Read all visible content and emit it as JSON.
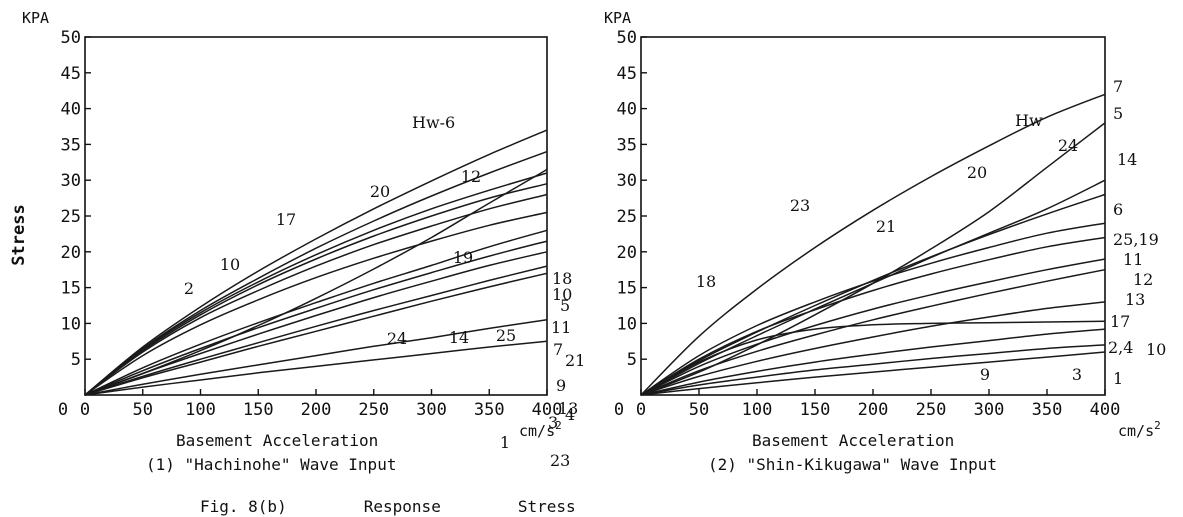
{
  "figure_caption": "Fig. 8(b)        Response        Stress",
  "chart_data": [
    {
      "type": "line",
      "panel_caption": "(1) \"Hachinohe\" Wave Input",
      "xlabel": "Basement  Acceleration",
      "xunit": "cm/s",
      "xunit_sup": "2",
      "ylabel": "Stress",
      "yunit": "KPA",
      "xlim": [
        0,
        400
      ],
      "ylim": [
        0,
        50
      ],
      "xticks": [
        "0",
        "50",
        "100",
        "150",
        "200",
        "250",
        "300",
        "350",
        "400"
      ],
      "yticks": [
        "5",
        "10",
        "15",
        "20",
        "25",
        "30",
        "35",
        "40",
        "45",
        "50"
      ],
      "inner_label": "Hw-6",
      "end_labels": [
        "18",
        "10",
        "5",
        "11",
        "7",
        "21",
        "9",
        "13",
        "4",
        "3",
        "23"
      ],
      "curve_labels": [
        "12",
        "20",
        "17",
        "10",
        "2",
        "19",
        "24",
        "14",
        "25",
        "1"
      ],
      "series": [
        {
          "values": [
            0,
            6.7,
            12.3,
            17.3,
            21.8,
            26.0,
            29.9,
            33.6,
            37.0
          ]
        },
        {
          "values": [
            0,
            6.5,
            11.8,
            16.3,
            20.5,
            24.3,
            27.8,
            31.0,
            34.0
          ]
        },
        {
          "values": [
            0,
            6.4,
            11.5,
            15.8,
            19.6,
            23.0,
            26.0,
            28.6,
            31.0
          ]
        },
        {
          "values": [
            0,
            6.2,
            11.2,
            15.4,
            19.0,
            22.2,
            25.0,
            27.5,
            29.5
          ]
        },
        {
          "values": [
            0,
            6.0,
            10.8,
            14.6,
            18.0,
            21.0,
            23.6,
            26.0,
            28.0
          ]
        },
        {
          "values": [
            0,
            3.0,
            6.2,
            9.7,
            13.5,
            17.6,
            22.0,
            26.8,
            31.5
          ]
        },
        {
          "values": [
            0,
            5.5,
            9.8,
            13.3,
            16.4,
            19.1,
            21.5,
            23.7,
            25.5
          ]
        },
        {
          "values": [
            0,
            3.8,
            7.1,
            10.1,
            12.9,
            15.6,
            18.1,
            20.7,
            23.0
          ]
        },
        {
          "values": [
            0,
            3.4,
            6.5,
            9.4,
            12.1,
            14.7,
            17.1,
            19.4,
            21.5
          ]
        },
        {
          "values": [
            0,
            3.0,
            5.8,
            8.5,
            11.1,
            13.6,
            15.9,
            18.1,
            20.0
          ]
        },
        {
          "values": [
            0,
            2.6,
            5.0,
            7.3,
            9.6,
            11.8,
            13.9,
            16.0,
            18.0
          ]
        },
        {
          "values": [
            0,
            2.4,
            4.6,
            6.8,
            8.9,
            11.0,
            13.1,
            15.1,
            17.0
          ]
        },
        {
          "values": [
            0,
            1.5,
            2.9,
            4.2,
            5.5,
            6.8,
            8.0,
            9.3,
            10.5
          ]
        },
        {
          "values": [
            0,
            1.1,
            2.1,
            3.1,
            4.0,
            4.9,
            5.8,
            6.7,
            7.5
          ]
        }
      ]
    },
    {
      "type": "line",
      "panel_caption": "(2) \"Shin-Kikugawa\" Wave Input",
      "xlabel": "Basement  Acceleration",
      "xunit": "cm/s",
      "xunit_sup": "2",
      "ylabel": "",
      "yunit": "KPA",
      "xlim": [
        0,
        400
      ],
      "ylim": [
        0,
        50
      ],
      "xticks": [
        "0",
        "50",
        "100",
        "150",
        "200",
        "250",
        "300",
        "350",
        "400"
      ],
      "yticks": [
        "5",
        "10",
        "15",
        "20",
        "25",
        "30",
        "35",
        "40",
        "45",
        "50"
      ],
      "inner_label": "Hw",
      "end_labels": [
        "7",
        "5",
        "14",
        "6",
        "25,19",
        "11",
        "12",
        "13",
        "17",
        "2,4",
        "10",
        "1"
      ],
      "curve_labels": [
        "18",
        "23",
        "21",
        "20",
        "24",
        "9",
        "3"
      ],
      "series": [
        {
          "values": [
            0,
            8.2,
            14.8,
            20.6,
            25.8,
            30.5,
            34.8,
            38.8,
            42.0
          ]
        },
        {
          "values": [
            0,
            3.2,
            7.0,
            11.2,
            15.6,
            20.4,
            25.6,
            31.8,
            38.0
          ]
        },
        {
          "values": [
            0,
            4.4,
            8.3,
            12.0,
            15.6,
            19.2,
            22.6,
            26.0,
            30.0
          ]
        },
        {
          "values": [
            0,
            4.8,
            8.8,
            12.5,
            16.0,
            19.3,
            22.4,
            25.3,
            28.0
          ]
        },
        {
          "values": [
            0,
            5.5,
            9.7,
            13.0,
            15.9,
            18.4,
            20.6,
            22.6,
            24.0
          ]
        },
        {
          "values": [
            0,
            5.0,
            8.9,
            11.9,
            14.6,
            16.9,
            18.9,
            20.7,
            22.0
          ]
        },
        {
          "values": [
            0,
            4.0,
            7.1,
            9.7,
            12.0,
            14.0,
            15.8,
            17.5,
            19.0
          ]
        },
        {
          "values": [
            0,
            3.4,
            6.1,
            8.4,
            10.5,
            12.4,
            14.2,
            15.9,
            17.5
          ]
        },
        {
          "values": [
            0,
            2.6,
            4.7,
            6.5,
            8.1,
            9.6,
            10.9,
            12.1,
            13.0
          ]
        },
        {
          "values": [
            0,
            4.6,
            7.7,
            9.2,
            9.8,
            10.0,
            10.1,
            10.2,
            10.3
          ]
        },
        {
          "values": [
            0,
            1.8,
            3.3,
            4.6,
            5.7,
            6.7,
            7.6,
            8.5,
            9.2
          ]
        },
        {
          "values": [
            0,
            1.4,
            2.5,
            3.5,
            4.3,
            5.1,
            5.8,
            6.5,
            7.0
          ]
        },
        {
          "values": [
            0,
            0.9,
            1.7,
            2.5,
            3.2,
            3.9,
            4.6,
            5.3,
            6.0
          ]
        }
      ]
    }
  ]
}
